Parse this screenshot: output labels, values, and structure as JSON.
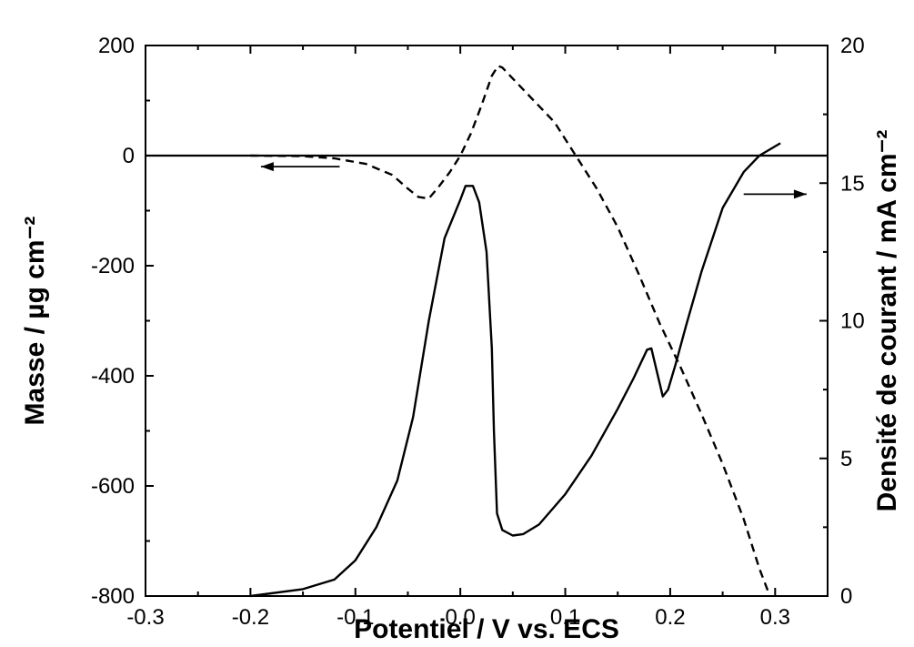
{
  "chart_data": {
    "type": "line",
    "xlabel": "Potentiel / V vs. ECS",
    "ylabel_left": "Masse / µg cm⁻²",
    "ylabel_right": "Densité de courant / mA cm⁻²",
    "xlim": [
      -0.3,
      0.35
    ],
    "ylim_left": [
      -800,
      200
    ],
    "ylim_right": [
      0,
      20
    ],
    "x_ticks": [
      -0.3,
      -0.2,
      -0.1,
      0.0,
      0.1,
      0.2,
      0.3
    ],
    "x_tick_labels": [
      "-0.3",
      "-0.2",
      "-0.1",
      "0.0",
      "0.1",
      "0.2",
      "0.3"
    ],
    "y_left_ticks": [
      200,
      0,
      -200,
      -400,
      -600,
      -800
    ],
    "y_left_tick_labels": [
      "200",
      "0",
      "-200",
      "-400",
      "-600",
      "-800"
    ],
    "y_right_ticks": [
      20,
      15,
      10,
      5,
      0
    ],
    "y_right_tick_labels": [
      "20",
      "15",
      "10",
      "5",
      "0"
    ],
    "zero_line_left": 0,
    "grid": false,
    "series": [
      {
        "axis": "left",
        "style": "dashed",
        "points": [
          [
            -0.2,
            0
          ],
          [
            -0.15,
            -1
          ],
          [
            -0.12,
            -5
          ],
          [
            -0.09,
            -15
          ],
          [
            -0.065,
            -35
          ],
          [
            -0.05,
            -60
          ],
          [
            -0.04,
            -75
          ],
          [
            -0.03,
            -78
          ],
          [
            -0.02,
            -55
          ],
          [
            -0.01,
            -30
          ],
          [
            0.0,
            0
          ],
          [
            0.01,
            40
          ],
          [
            0.02,
            90
          ],
          [
            0.03,
            145
          ],
          [
            0.036,
            163
          ],
          [
            0.04,
            160
          ],
          [
            0.05,
            140
          ],
          [
            0.06,
            120
          ],
          [
            0.07,
            100
          ],
          [
            0.08,
            80
          ],
          [
            0.09,
            60
          ],
          [
            0.1,
            30
          ],
          [
            0.11,
            0
          ],
          [
            0.13,
            -60
          ],
          [
            0.15,
            -130
          ],
          [
            0.17,
            -215
          ],
          [
            0.19,
            -305
          ],
          [
            0.21,
            -385
          ],
          [
            0.23,
            -470
          ],
          [
            0.25,
            -560
          ],
          [
            0.27,
            -660
          ],
          [
            0.285,
            -750
          ],
          [
            0.295,
            -800
          ]
        ]
      },
      {
        "axis": "right",
        "style": "solid",
        "points": [
          [
            -0.2,
            0
          ],
          [
            -0.15,
            0.25
          ],
          [
            -0.12,
            0.6
          ],
          [
            -0.1,
            1.3
          ],
          [
            -0.08,
            2.5
          ],
          [
            -0.06,
            4.2
          ],
          [
            -0.045,
            6.5
          ],
          [
            -0.03,
            10
          ],
          [
            -0.015,
            13
          ],
          [
            0.0,
            14.4
          ],
          [
            0.005,
            14.9
          ],
          [
            0.012,
            14.9
          ],
          [
            0.018,
            14.3
          ],
          [
            0.025,
            12.5
          ],
          [
            0.03,
            9
          ],
          [
            0.032,
            6
          ],
          [
            0.035,
            3
          ],
          [
            0.04,
            2.4
          ],
          [
            0.05,
            2.2
          ],
          [
            0.06,
            2.25
          ],
          [
            0.075,
            2.6
          ],
          [
            0.1,
            3.7
          ],
          [
            0.125,
            5.1
          ],
          [
            0.15,
            6.8
          ],
          [
            0.165,
            7.9
          ],
          [
            0.178,
            8.95
          ],
          [
            0.182,
            9.0
          ],
          [
            0.193,
            7.25
          ],
          [
            0.198,
            7.5
          ],
          [
            0.205,
            8.4
          ],
          [
            0.215,
            9.8
          ],
          [
            0.23,
            11.8
          ],
          [
            0.25,
            14.1
          ],
          [
            0.27,
            15.4
          ],
          [
            0.285,
            16.0
          ],
          [
            0.305,
            16.45
          ]
        ]
      }
    ],
    "arrows": [
      {
        "axis": "left",
        "x_from": -0.115,
        "x_to": -0.19,
        "y": -20
      },
      {
        "axis": "right",
        "x_from": 0.27,
        "x_to": 0.33,
        "y": 14.6
      }
    ]
  }
}
